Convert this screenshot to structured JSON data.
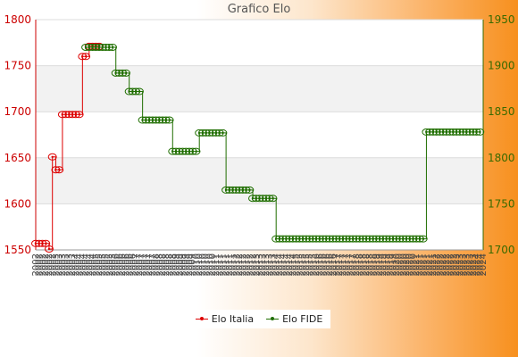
{
  "chart_data": {
    "type": "line",
    "title": "Grafico Elo",
    "xlabel": "",
    "ylabel": "",
    "y_left": {
      "min": 1550,
      "max": 1800,
      "ticks": [
        1550,
        1600,
        1650,
        1700,
        1750,
        1800
      ],
      "color": "#cc0000"
    },
    "y_right": {
      "min": 1700,
      "max": 1950,
      "ticks": [
        1700,
        1750,
        1800,
        1850,
        1900,
        1950
      ],
      "color": "#3a6a00"
    },
    "grid": "horizontal alternating bands",
    "legend_position": "bottom",
    "x_tick_labels": [
      "2002",
      "2002",
      "2002",
      "2002",
      "2002",
      "2002",
      "2003",
      "2003",
      "2003",
      "2003",
      "2003",
      "2003",
      "2004",
      "2004",
      "2004",
      "2004",
      "2004",
      "2004",
      "2005",
      "2005",
      "2005",
      "2005",
      "2005",
      "2005",
      "2006",
      "2006",
      "2006",
      "2006",
      "2006",
      "2006",
      "2007",
      "2007",
      "2007",
      "2007",
      "2007",
      "2007",
      "2008",
      "2008",
      "2008",
      "2008",
      "2008",
      "2008",
      "2009",
      "2009",
      "2009",
      "2009",
      "2009",
      "2009",
      "2010",
      "2010",
      "2010",
      "2010",
      "2010",
      "2010",
      "2011",
      "2011",
      "2011",
      "2011",
      "2011",
      "2011",
      "2012",
      "2012",
      "2012",
      "2012",
      "2012",
      "2012",
      "2013",
      "2013",
      "2013",
      "2013",
      "2013",
      "2013",
      "2014",
      "2014",
      "2014",
      "2014",
      "2014",
      "2014",
      "2015",
      "2015",
      "2015",
      "2015",
      "2015",
      "2015",
      "2016",
      "2016",
      "2016",
      "2016",
      "2016",
      "2016",
      "2017",
      "2017",
      "2017",
      "2017",
      "2017",
      "2017",
      "2018",
      "2018",
      "2018",
      "2018",
      "2018",
      "2018",
      "2019",
      "2019",
      "2019",
      "2019",
      "2019",
      "2019",
      "2020",
      "2020",
      "2020",
      "2020",
      "2020",
      "2020",
      "2021",
      "2021",
      "2021",
      "2021",
      "2021",
      "2021",
      "2022",
      "2022",
      "2022",
      "2022",
      "2022",
      "2022",
      "2023",
      "2023",
      "2023",
      "2023",
      "2023",
      "2023",
      "2024",
      "2024",
      "2024"
    ],
    "series": [
      {
        "name": "Elo Italia",
        "axis": "left",
        "color": "#dd0000",
        "x": [
          0,
          1,
          2,
          3,
          4,
          5,
          6,
          7,
          8,
          9,
          10,
          11,
          12,
          13,
          14,
          15,
          16,
          17,
          18,
          19
        ],
        "values": [
          1557,
          1557,
          1557,
          1557,
          1551,
          1651,
          1637,
          1637,
          1697,
          1697,
          1697,
          1697,
          1697,
          1697,
          1760,
          1760,
          1771,
          1771,
          1771,
          1771
        ]
      },
      {
        "name": "Elo FIDE",
        "axis": "right",
        "color": "#1f6e00",
        "x": [
          15,
          16,
          17,
          18,
          19,
          20,
          21,
          22,
          23,
          24,
          25,
          26,
          27,
          28,
          29,
          30,
          31,
          32,
          33,
          34,
          35,
          36,
          37,
          38,
          39,
          40,
          41,
          42,
          43,
          44,
          45,
          46,
          47,
          48,
          49,
          50,
          51,
          52,
          53,
          54,
          55,
          56,
          57,
          58,
          59,
          60,
          61,
          62,
          63,
          64,
          65,
          66,
          67,
          68,
          69,
          70,
          71,
          72,
          73,
          74,
          75,
          76,
          77,
          78,
          79,
          80,
          81,
          82,
          83,
          84,
          85,
          86,
          87,
          88,
          89,
          90,
          91,
          92,
          93,
          94,
          95,
          96,
          97,
          98,
          99,
          100,
          101,
          102,
          103,
          104,
          105,
          106,
          107,
          108,
          109,
          110,
          111,
          112,
          113,
          114,
          115,
          116,
          117,
          118,
          119,
          120,
          121,
          122,
          123,
          124,
          125,
          126,
          127,
          128,
          129,
          130,
          131,
          132,
          133
        ],
        "values": [
          1920,
          1920,
          1920,
          1920,
          1920,
          1920,
          1920,
          1920,
          1920,
          1892,
          1892,
          1892,
          1892,
          1872,
          1872,
          1872,
          1872,
          1841,
          1841,
          1841,
          1841,
          1841,
          1841,
          1841,
          1841,
          1841,
          1807,
          1807,
          1807,
          1807,
          1807,
          1807,
          1807,
          1807,
          1827,
          1827,
          1827,
          1827,
          1827,
          1827,
          1827,
          1827,
          1765,
          1765,
          1765,
          1765,
          1765,
          1765,
          1765,
          1765,
          1756,
          1756,
          1756,
          1756,
          1756,
          1756,
          1756,
          1712,
          1712,
          1712,
          1712,
          1712,
          1712,
          1712,
          1712,
          1712,
          1712,
          1712,
          1712,
          1712,
          1712,
          1712,
          1712,
          1712,
          1712,
          1712,
          1712,
          1712,
          1712,
          1712,
          1712,
          1712,
          1712,
          1712,
          1712,
          1712,
          1712,
          1712,
          1712,
          1712,
          1712,
          1712,
          1712,
          1712,
          1712,
          1712,
          1712,
          1712,
          1712,
          1712,
          1712,
          1712,
          1828,
          1828,
          1828,
          1828,
          1828,
          1828,
          1828,
          1828,
          1828,
          1828,
          1828,
          1828,
          1828,
          1828,
          1828,
          1828,
          1828
        ]
      }
    ]
  }
}
